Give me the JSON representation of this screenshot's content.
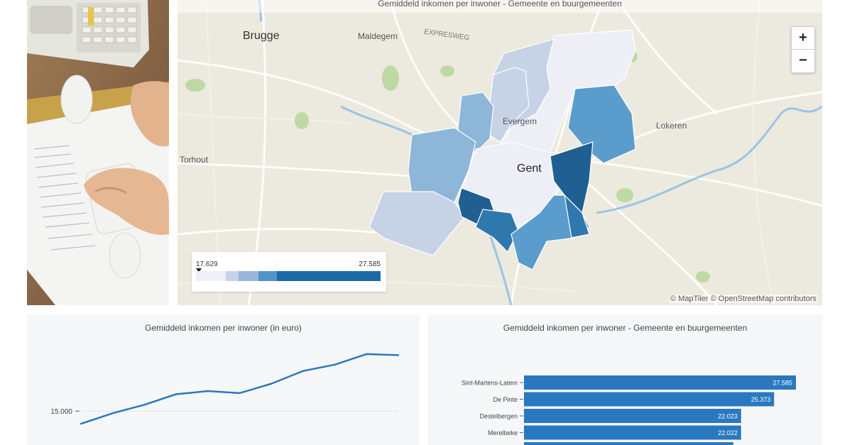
{
  "map": {
    "title": "Gemiddeld inkomen per inwoner - Gemeente en buurgemeenten",
    "places": {
      "brugge": "Brugge",
      "maldegem": "Maldegem",
      "expressweg": "EXPRESWEG",
      "evergem": "Evergem",
      "gent": "Gent",
      "lokeren": "Lokeren",
      "torhout": "Torhout"
    },
    "zoom_in": "+",
    "zoom_out": "−",
    "legend": {
      "min": "17.629",
      "max": "27.585",
      "colors": [
        "#eef0f8",
        "#c7d3e8",
        "#98b6db",
        "#4f95c7",
        "#1a6aa6"
      ],
      "weights": [
        16,
        7,
        11,
        10,
        56
      ]
    },
    "attribution": "© MapTiler © OpenStreetMap contributors",
    "region_colors": {
      "lightest": "#eeeff6",
      "light": "#c6d2e6",
      "mid": "#8eb6d8",
      "midblue": "#5a9ccb",
      "dark": "#2f78ae",
      "darkest": "#1f5f92"
    }
  },
  "line_panel": {
    "title": "Gemiddeld inkomen per inwoner (in euro)",
    "chart_data": {
      "type": "line",
      "ytick": "15.000",
      "ytick_value": 15000,
      "values": [
        14400,
        14900,
        15300,
        15800,
        15950,
        15850,
        16300,
        16900,
        17200,
        17700,
        17650
      ],
      "ylim": [
        14200,
        17900
      ],
      "color": "#2a78c0"
    }
  },
  "bar_panel": {
    "title": "Gemiddeld inkomen per inwoner - Gemeente en buurgemeenten",
    "chart_data": {
      "type": "bar",
      "categories": [
        "Sint-Martens-Latem",
        "De Pinte",
        "Destelbergen",
        "Merelbeke"
      ],
      "values": [
        27585,
        25373,
        22023,
        22022
      ],
      "labels": [
        "27.585",
        "25.373",
        "22.023",
        "22.022"
      ],
      "xlim": [
        0,
        27585
      ],
      "color": "#2a78c0"
    }
  }
}
